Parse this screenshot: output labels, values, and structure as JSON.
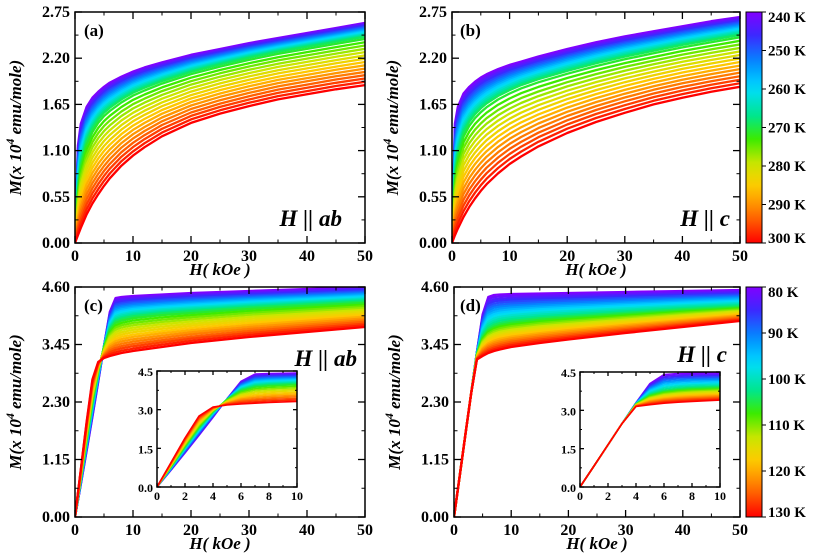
{
  "chart_data": [
    {
      "id": "a",
      "type": "line",
      "panel_label": "(a)",
      "field_label": "H || ab",
      "xlabel": "H( kOe )",
      "ylabel": "M(x 10^4 emu/mole)",
      "xlim": [
        0,
        50
      ],
      "ylim": [
        0,
        2.75
      ],
      "xticks": [
        "0",
        "10",
        "20",
        "30",
        "40",
        "50"
      ],
      "yticks": [
        "0.00",
        "0.55",
        "1.10",
        "1.65",
        "2.20",
        "2.75"
      ],
      "colorscale": "temperature 240-300 K (violet to red)",
      "x": [
        0,
        0.5,
        1,
        2,
        3,
        4,
        5,
        6,
        8,
        10,
        12,
        15,
        20,
        25,
        30,
        35,
        40,
        45,
        50
      ],
      "series": [
        {
          "name": "240 K",
          "values": [
            0,
            1.16,
            1.42,
            1.62,
            1.73,
            1.8,
            1.86,
            1.91,
            1.98,
            2.04,
            2.09,
            2.15,
            2.24,
            2.31,
            2.38,
            2.44,
            2.5,
            2.56,
            2.62
          ]
        },
        {
          "name": "270 K",
          "values": [
            0,
            0.62,
            0.93,
            1.2,
            1.35,
            1.46,
            1.54,
            1.6,
            1.7,
            1.78,
            1.84,
            1.92,
            2.03,
            2.12,
            2.2,
            2.27,
            2.33,
            2.39,
            2.45
          ]
        },
        {
          "name": "300 K",
          "values": [
            0,
            0.09,
            0.18,
            0.34,
            0.47,
            0.58,
            0.68,
            0.77,
            0.92,
            1.04,
            1.14,
            1.27,
            1.43,
            1.54,
            1.63,
            1.71,
            1.77,
            1.83,
            1.88
          ]
        }
      ]
    },
    {
      "id": "b",
      "type": "line",
      "panel_label": "(b)",
      "field_label": "H || c",
      "xlabel": "H( kOe )",
      "ylabel": "M(x 10^4 emu/mole)",
      "xlim": [
        0,
        50
      ],
      "ylim": [
        0,
        2.75
      ],
      "xticks": [
        "0",
        "10",
        "20",
        "30",
        "40",
        "50"
      ],
      "yticks": [
        "0.00",
        "0.55",
        "1.10",
        "1.65",
        "2.20",
        "2.75"
      ],
      "colorscale": "temperature 240-300 K (violet to red)",
      "x": [
        0,
        0.5,
        1,
        2,
        3,
        4,
        5,
        6,
        8,
        10,
        12,
        15,
        20,
        25,
        30,
        35,
        40,
        45,
        50
      ],
      "series": [
        {
          "name": "240 K",
          "values": [
            0,
            1.42,
            1.62,
            1.78,
            1.86,
            1.92,
            1.97,
            2.01,
            2.07,
            2.12,
            2.16,
            2.22,
            2.31,
            2.39,
            2.46,
            2.52,
            2.58,
            2.64,
            2.69
          ]
        },
        {
          "name": "270 K",
          "values": [
            0,
            0.78,
            1.04,
            1.3,
            1.43,
            1.52,
            1.59,
            1.65,
            1.74,
            1.81,
            1.87,
            1.94,
            2.04,
            2.13,
            2.21,
            2.28,
            2.35,
            2.41,
            2.47
          ]
        },
        {
          "name": "300 K",
          "values": [
            0,
            0.09,
            0.17,
            0.31,
            0.43,
            0.53,
            0.62,
            0.7,
            0.83,
            0.94,
            1.03,
            1.15,
            1.31,
            1.44,
            1.55,
            1.65,
            1.73,
            1.8,
            1.86
          ]
        }
      ],
      "colorbar": {
        "labels": [
          "240 K",
          "250 K",
          "260 K",
          "270 K",
          "280 K",
          "290 K",
          "300 K"
        ]
      }
    },
    {
      "id": "c",
      "type": "line",
      "panel_label": "(c)",
      "field_label": "H || ab",
      "xlabel": "H( kOe )",
      "ylabel": "M(x 10^4 emu/mole)",
      "xlim": [
        0,
        50
      ],
      "ylim": [
        0,
        4.6
      ],
      "xticks": [
        "0",
        "10",
        "20",
        "30",
        "40",
        "50"
      ],
      "yticks": [
        "0.00",
        "1.15",
        "2.30",
        "3.45",
        "4.60"
      ],
      "colorscale": "temperature 80-130 K (violet to red)",
      "x": [
        0,
        1,
        2,
        3,
        4,
        5,
        6,
        7,
        8,
        10,
        15,
        20,
        30,
        40,
        50
      ],
      "series": [
        {
          "name": "80 K",
          "values": [
            0,
            0.65,
            1.32,
            2.0,
            2.7,
            3.42,
            4.1,
            4.38,
            4.4,
            4.42,
            4.45,
            4.48,
            4.52,
            4.56,
            4.6
          ]
        },
        {
          "name": "105 K",
          "values": [
            0,
            0.78,
            1.56,
            2.3,
            2.92,
            3.4,
            3.75,
            3.9,
            3.95,
            4.0,
            4.06,
            4.1,
            4.18,
            4.24,
            4.3
          ]
        },
        {
          "name": "130 K",
          "values": [
            0,
            0.95,
            1.9,
            2.75,
            3.1,
            3.18,
            3.22,
            3.25,
            3.28,
            3.32,
            3.4,
            3.48,
            3.6,
            3.7,
            3.8
          ]
        }
      ],
      "inset": {
        "xlim": [
          0,
          10
        ],
        "ylim": [
          0,
          4.5
        ],
        "xticks": [
          "0",
          "2",
          "4",
          "6",
          "8",
          "10"
        ],
        "yticks": [
          "0.0",
          "1.5",
          "3.0",
          "4.5"
        ]
      }
    },
    {
      "id": "d",
      "type": "line",
      "panel_label": "(d)",
      "field_label": "H || c",
      "xlabel": "H( kOe )",
      "ylabel": "M(x 10^4 emu/mole)",
      "xlim": [
        0,
        50
      ],
      "ylim": [
        0,
        4.6
      ],
      "xticks": [
        "0",
        "10",
        "20",
        "30",
        "40",
        "50"
      ],
      "yticks": [
        "0.00",
        "1.15",
        "2.30",
        "3.45",
        "4.60"
      ],
      "colorscale": "temperature 80-130 K (violet to red)",
      "x": [
        0,
        1,
        2,
        3,
        4,
        5,
        6,
        7,
        8,
        10,
        15,
        20,
        30,
        40,
        50
      ],
      "series": [
        {
          "name": "80 K",
          "values": [
            0,
            0.82,
            1.65,
            2.48,
            3.3,
            4.05,
            4.4,
            4.44,
            4.45,
            4.46,
            4.47,
            4.48,
            4.5,
            4.52,
            4.54
          ]
        },
        {
          "name": "105 K",
          "values": [
            0,
            0.82,
            1.65,
            2.48,
            3.25,
            3.6,
            3.75,
            3.82,
            3.86,
            3.9,
            3.96,
            4.0,
            4.07,
            4.14,
            4.2
          ]
        },
        {
          "name": "130 K",
          "values": [
            0,
            0.82,
            1.65,
            2.48,
            3.15,
            3.22,
            3.28,
            3.32,
            3.35,
            3.4,
            3.48,
            3.55,
            3.68,
            3.8,
            3.92
          ]
        }
      ],
      "inset": {
        "xlim": [
          0,
          10
        ],
        "ylim": [
          0,
          4.5
        ],
        "xticks": [
          "0",
          "2",
          "4",
          "6",
          "8",
          "10"
        ],
        "yticks": [
          "0.0",
          "1.5",
          "3.0",
          "4.5"
        ]
      },
      "colorbar": {
        "labels": [
          "80 K",
          "90 K",
          "100 K",
          "110 K",
          "120 K",
          "130 K"
        ]
      }
    }
  ]
}
